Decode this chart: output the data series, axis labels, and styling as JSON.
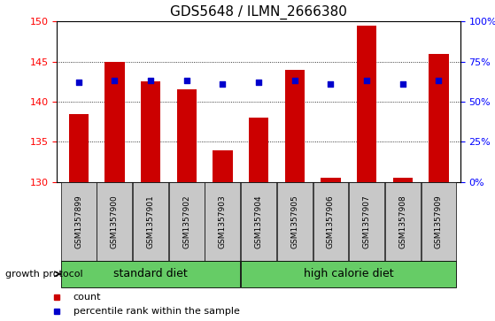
{
  "title": "GDS5648 / ILMN_2666380",
  "samples": [
    "GSM1357899",
    "GSM1357900",
    "GSM1357901",
    "GSM1357902",
    "GSM1357903",
    "GSM1357904",
    "GSM1357905",
    "GSM1357906",
    "GSM1357907",
    "GSM1357908",
    "GSM1357909"
  ],
  "counts": [
    138.5,
    145.0,
    142.5,
    141.5,
    134.0,
    138.0,
    144.0,
    130.5,
    149.5,
    130.5,
    146.0
  ],
  "percentiles": [
    62,
    63,
    63,
    63,
    61,
    62,
    63,
    61,
    63,
    61,
    63
  ],
  "ylim_left": [
    130,
    150
  ],
  "ylim_right": [
    0,
    100
  ],
  "yticks_left": [
    130,
    135,
    140,
    145,
    150
  ],
  "yticks_right": [
    0,
    25,
    50,
    75,
    100
  ],
  "ytick_right_labels": [
    "0%",
    "25%",
    "50%",
    "75%",
    "100%"
  ],
  "bar_color": "#cc0000",
  "dot_color": "#0000cc",
  "standard_diet_indices": [
    0,
    1,
    2,
    3,
    4
  ],
  "high_calorie_indices": [
    5,
    6,
    7,
    8,
    9,
    10
  ],
  "standard_label": "standard diet",
  "high_calorie_label": "high calorie diet",
  "growth_protocol_label": "growth protocol",
  "legend_count": "count",
  "legend_percentile": "percentile rank within the sample",
  "bar_bottom": 130,
  "group_box_color": "#c8c8c8",
  "group_green_color": "#66cc66",
  "title_fontsize": 11,
  "tick_fontsize": 8,
  "sample_fontsize": 6.5,
  "group_fontsize": 9,
  "legend_fontsize": 8,
  "growth_fontsize": 8
}
